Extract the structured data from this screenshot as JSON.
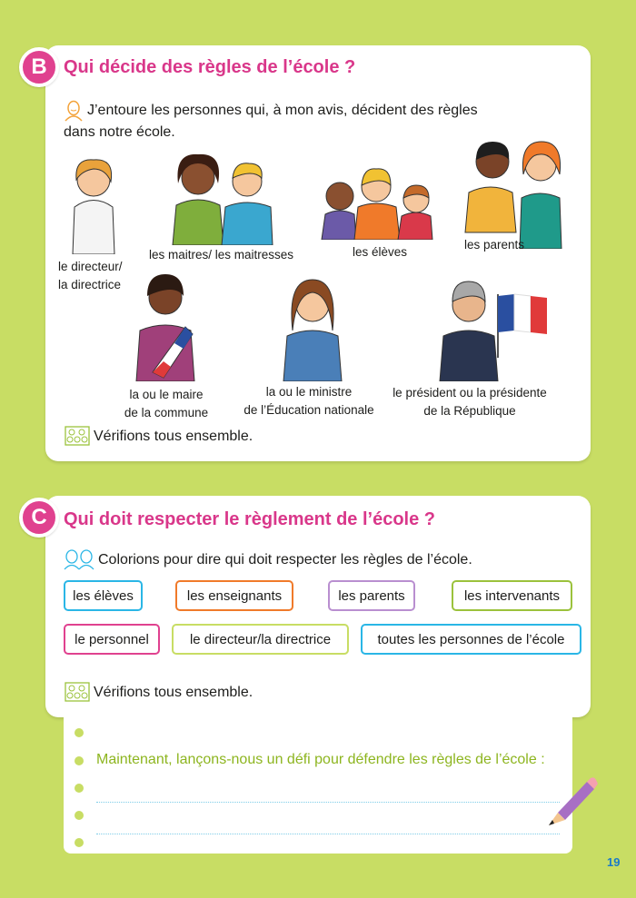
{
  "section_b": {
    "badge": "B",
    "title": "Qui décide des règles de l’école ?",
    "instruction_line1": "J’entoure les personnes qui, à mon avis, décident des règles",
    "instruction_line2": "dans notre école.",
    "people": [
      {
        "line1": "le directeur/",
        "line2": "la directrice"
      },
      {
        "line1": "les maitres/ les maitresses",
        "line2": ""
      },
      {
        "line1": "les élèves",
        "line2": ""
      },
      {
        "line1": "les parents",
        "line2": ""
      },
      {
        "line1": "la ou le maire",
        "line2": "de la commune"
      },
      {
        "line1": "la ou le ministre",
        "line2": "de l’Éducation nationale"
      },
      {
        "line1": "le président ou la présidente",
        "line2": "de la République"
      }
    ],
    "check": "Vérifions tous ensemble."
  },
  "section_c": {
    "badge": "C",
    "title": "Qui doit respecter le règlement de l’école ?",
    "instruction": "Colorions pour dire qui doit respecter les règles de l’école.",
    "chips": [
      {
        "label": "les élèves",
        "color": "#2ab6e6"
      },
      {
        "label": "les enseignants",
        "color": "#f07a2a"
      },
      {
        "label": "les parents",
        "color": "#b98fd0"
      },
      {
        "label": "les intervenants",
        "color": "#9bc23c"
      },
      {
        "label": "le personnel",
        "color": "#e0418f"
      },
      {
        "label": "le directeur/la directrice",
        "color": "#c8dd64"
      },
      {
        "label": "toutes les personnes de l’école",
        "color": "#2ab6e6"
      }
    ],
    "check": "Vérifions tous ensemble."
  },
  "notebook": {
    "prompt": "Maintenant, lançons-nous un défi pour défendre les règles de l’école :"
  },
  "page_number": "19",
  "colors": {
    "background": "#c8dd64",
    "accent_pink": "#e0418f",
    "prompt_green": "#8db51f",
    "page_number_blue": "#1a7ac8"
  }
}
